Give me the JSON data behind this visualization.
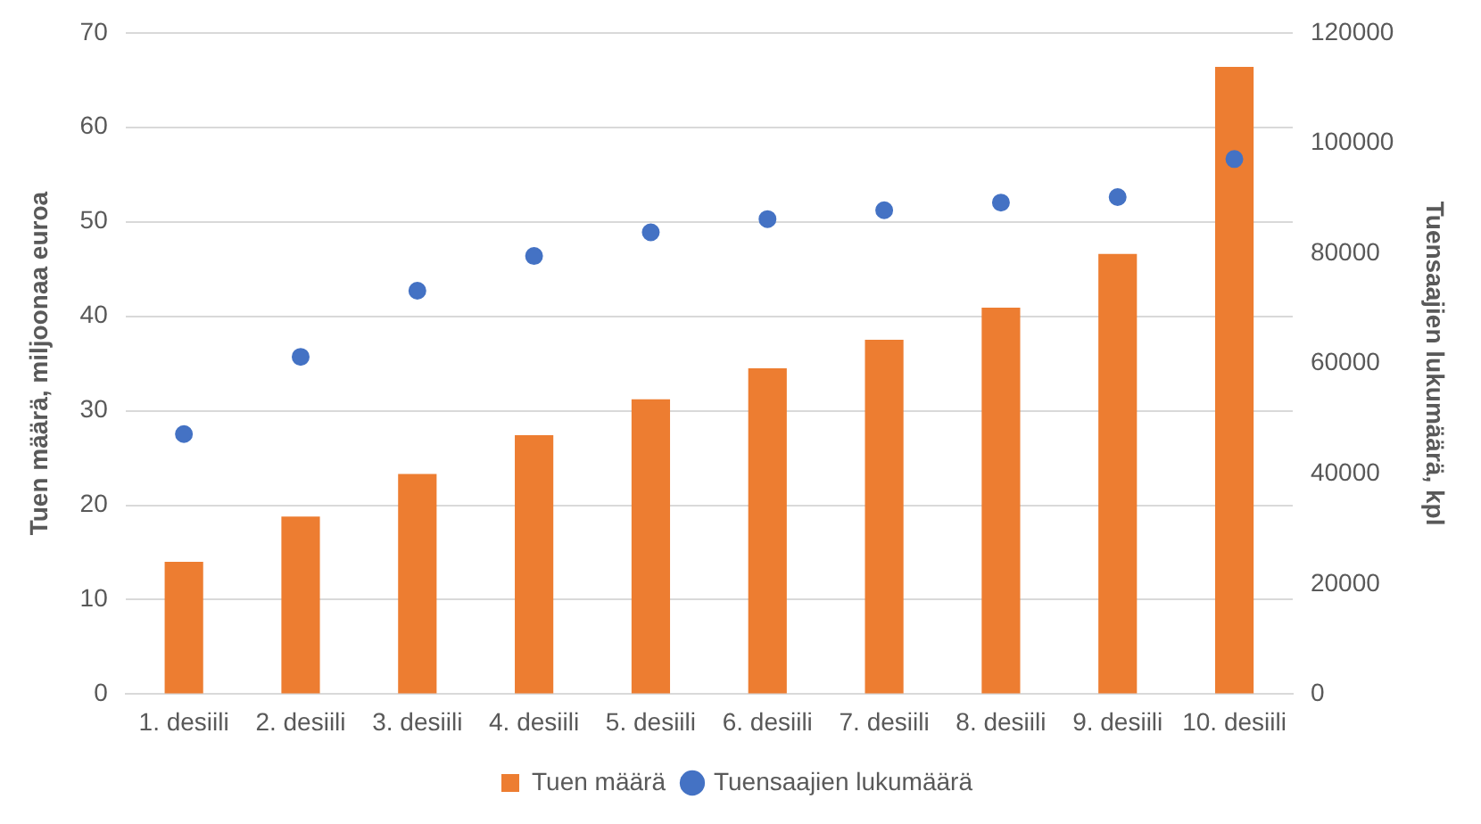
{
  "chart_data": {
    "type": "bar",
    "ylabel": "Tuen määrä, miljoonaa euroa",
    "y2label": "Tuensaajien lukumäärä, kpl",
    "categories": [
      "1. desiili",
      "2. desiili",
      "3. desiili",
      "4. desiili",
      "5. desiili",
      "6. desiili",
      "7. desiili",
      "8. desiili",
      "9. desiili",
      "10. desiili"
    ],
    "series": [
      {
        "name": "Tuen määrä",
        "color": "#ed7d31",
        "values": [
          14.0,
          18.8,
          23.3,
          27.4,
          31.2,
          34.5,
          37.5,
          40.9,
          46.6,
          66.4
        ]
      },
      {
        "name": "Tuensaajien lukumäärä",
        "type": "scatter",
        "axis": "y2",
        "color": "#4472c4",
        "values": [
          47200,
          61200,
          73200,
          79500,
          83800,
          86200,
          87800,
          89200,
          90200,
          97100
        ]
      }
    ],
    "ylim": [
      0,
      70
    ],
    "yticks": [
      0,
      10,
      20,
      30,
      40,
      50,
      60,
      70
    ],
    "y2lim": [
      0,
      120000
    ],
    "y2ticks": [
      0,
      20000,
      40000,
      60000,
      80000,
      100000,
      120000
    ],
    "grid": "y",
    "legend": "bottom",
    "marker": "circle"
  }
}
